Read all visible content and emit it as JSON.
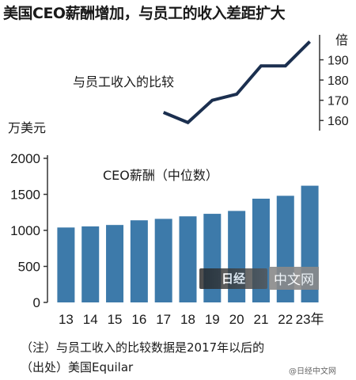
{
  "title": "美国CEO薪酬增加，与员工的收入差距扩大",
  "note": "（注）与员工收入的比较数据是2017年以后的",
  "source": "（出处）美国Equilar",
  "watermark": "中文网",
  "watermark_logo": "日经",
  "weibo": "@日经中文网",
  "colors": {
    "bar": "#3d7aaa",
    "line": "#1b2f4f"
  },
  "chart_data": [
    {
      "type": "bar",
      "title": "CEO薪酬（中位数）",
      "unit_label": "万美元",
      "categories": [
        "13",
        "14",
        "15",
        "16",
        "17",
        "18",
        "19",
        "20",
        "21",
        "22",
        "23年"
      ],
      "values": [
        1040,
        1055,
        1075,
        1140,
        1160,
        1195,
        1230,
        1270,
        1440,
        1480,
        1620
      ],
      "ylim": [
        0,
        2000
      ],
      "yticks": [
        0,
        500,
        1000,
        1500,
        2000
      ]
    },
    {
      "type": "line",
      "title": "与员工收入的比较",
      "unit_label": "倍",
      "x": [
        "17",
        "18",
        "19",
        "20",
        "21",
        "22",
        "23年"
      ],
      "values": [
        164,
        159,
        170,
        173,
        187,
        187,
        199
      ],
      "ylim": [
        155,
        200
      ],
      "yticks": [
        160,
        170,
        180,
        190
      ]
    }
  ]
}
